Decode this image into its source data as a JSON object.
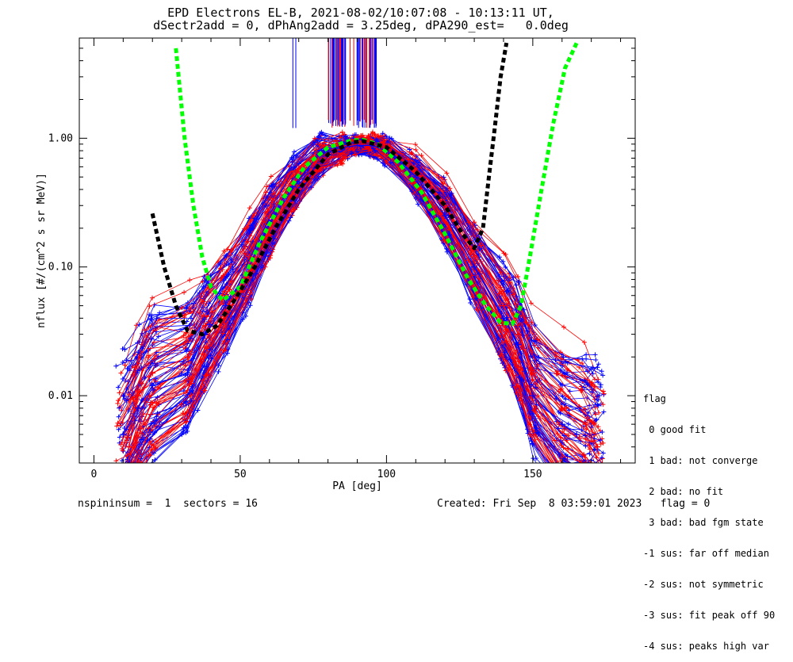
{
  "title_line1": "EPD Electrons EL-B, 2021-08-02/10:07:08 - 10:13:11 UT,",
  "title_line2": "dSectr2add = 0, dPhAng2add = 3.25deg, dPA290_est=   0.0deg",
  "footer_left": "nspininsum =  1  sectors = 16",
  "footer_right": "Created: Fri Sep  8 03:59:01 2023   flag = 0",
  "legend": {
    "title": "flag",
    "items": [
      " 0 good fit",
      " 1 bad: not converge",
      " 2 bad: no fit",
      " 3 bad: bad fgm state",
      "-1 sus: far off median",
      "-2 sus: not symmetric",
      "-3 sus: fit peak off 90",
      "-4 sus: peaks high var"
    ]
  },
  "colors": {
    "red_series": "#ff0000",
    "blue_series": "#0000ff",
    "green_fit": "#00ff00",
    "black_fit": "#000000"
  },
  "chart_data": {
    "type": "line",
    "title": "EPD Electrons EL-B, 2021-08-02/10:07:08 - 10:13:11 UT,",
    "subtitle": "dSectr2add = 0, dPhAng2add = 3.25deg, dPA290_est=   0.0deg",
    "xlabel": "PA [deg]",
    "ylabel": "nflux [#/(cm^2 s sr MeV)]",
    "x_scale": "linear",
    "y_scale": "log",
    "xlim": [
      -5,
      185
    ],
    "ylim": [
      0.003,
      6
    ],
    "x_ticks": [
      0,
      50,
      100,
      150
    ],
    "x_tick_labels": [
      "0",
      "50",
      "100",
      "150"
    ],
    "y_ticks": [
      0.01,
      0.1,
      1.0
    ],
    "y_tick_labels": [
      "0.01",
      "0.10",
      "1.00"
    ],
    "grid": false,
    "legend_position": "right",
    "series": [
      {
        "color": "red",
        "x": [
          12,
          15,
          20,
          32,
          38,
          45,
          53,
          60,
          68,
          77,
          85,
          90,
          95,
          100,
          110,
          120,
          130,
          140,
          145,
          150,
          160,
          168,
          172
        ],
        "y": [
          0.004,
          0.01,
          0.015,
          0.02,
          0.035,
          0.06,
          0.12,
          0.25,
          0.45,
          0.75,
          0.85,
          0.9,
          0.9,
          0.85,
          0.55,
          0.3,
          0.12,
          0.05,
          0.03,
          0.015,
          0.008,
          0.006,
          0.004
        ]
      },
      {
        "color": "blue",
        "x": [
          10,
          15,
          20,
          32,
          38,
          45,
          53,
          60,
          68,
          77,
          85,
          90,
          95,
          100,
          110,
          120,
          130,
          140,
          145,
          150,
          160,
          165
        ],
        "y": [
          0.005,
          0.008,
          0.012,
          0.015,
          0.03,
          0.05,
          0.1,
          0.22,
          0.42,
          0.75,
          0.85,
          0.88,
          0.88,
          0.8,
          0.5,
          0.25,
          0.1,
          0.04,
          0.025,
          0.01,
          0.006,
          0.005
        ]
      },
      {
        "color": "green",
        "style": "dashed fit",
        "x": [
          28,
          31,
          34,
          37,
          40,
          44,
          50,
          57,
          65,
          72,
          80,
          88,
          92,
          97,
          104,
          112,
          120,
          128,
          134,
          139,
          143,
          146,
          149,
          153,
          157,
          161,
          165
        ],
        "y": [
          5.0,
          1.0,
          0.3,
          0.12,
          0.07,
          0.055,
          0.07,
          0.16,
          0.35,
          0.6,
          0.85,
          0.96,
          0.97,
          0.9,
          0.65,
          0.38,
          0.18,
          0.08,
          0.05,
          0.037,
          0.036,
          0.05,
          0.12,
          0.4,
          1.3,
          3.5,
          5.5
        ]
      },
      {
        "color": "black",
        "style": "dashed fit",
        "x": [
          20,
          24,
          28,
          32,
          37,
          42,
          48,
          55,
          62,
          70,
          80,
          88,
          92,
          100,
          110,
          120,
          126,
          130,
          133,
          135,
          137,
          139,
          141
        ],
        "y": [
          0.26,
          0.1,
          0.05,
          0.032,
          0.03,
          0.035,
          0.055,
          0.1,
          0.2,
          0.4,
          0.75,
          0.93,
          0.95,
          0.85,
          0.55,
          0.3,
          0.18,
          0.14,
          0.2,
          0.5,
          1.2,
          3.0,
          5.5
        ]
      }
    ]
  }
}
